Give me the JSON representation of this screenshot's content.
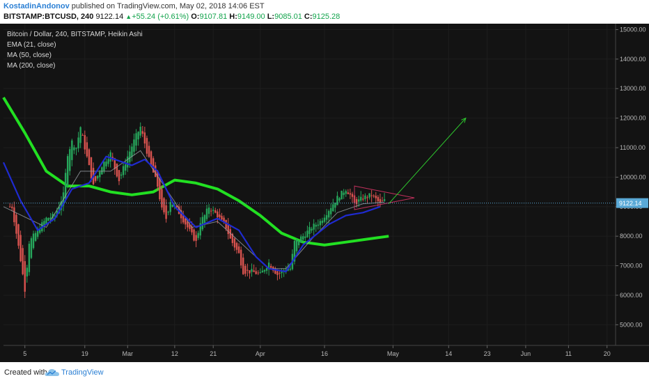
{
  "header": {
    "author": "KostadinAndonov",
    "published_text": "published on TradingView.com, May 02, 2018 14:06 EST",
    "symbol": "BITSTAMP:BTCUSD, 240",
    "last_price": "9122.14",
    "change": "+55.24 (+0.61%)",
    "open_label": "O:",
    "open_value": "9107.81",
    "high_label": "H:",
    "high_value": "9149.00",
    "low_label": "L:",
    "low_value": "9085.01",
    "close_label": "C:",
    "close_value": "9125.28"
  },
  "legend": [
    "Bitcoin / Dollar, 240, BITSTAMP, Heikin Ashi",
    "EMA (21, close)",
    "MA (50, close)",
    "MA (200, close)"
  ],
  "footer": {
    "created_with": "Created with",
    "brand": "TradingView"
  },
  "colors": {
    "background": "#131313",
    "up_candle": "#26a65b",
    "down_candle": "#d9534f",
    "ema21": "#9aa0a6",
    "ma50": "#1f2bd1",
    "ma200": "#22e022",
    "triangle": "#c0305c",
    "arrow": "#2ec82e",
    "last_price_line": "#5aa9d6"
  },
  "chart_data": {
    "type": "line",
    "style": "Heikin Ashi candles with moving averages",
    "y_axis": {
      "ticks": [
        5000,
        6000,
        7000,
        8000,
        9000,
        10000,
        11000,
        12000,
        13000,
        14000,
        15000
      ],
      "tick_labels": [
        "5000.00",
        "6000.00",
        "7000.00",
        "8000.00",
        "9000.00",
        "10000.00",
        "11000.00",
        "12000.00",
        "13000.00",
        "14000.00",
        "15000.00"
      ],
      "ylim": [
        4300,
        15200
      ]
    },
    "x_axis": {
      "tick_labels": [
        "5",
        "19",
        "Mar",
        "12",
        "21",
        "Apr",
        "16",
        "May",
        "14",
        "23",
        "Jun",
        "11",
        "20"
      ],
      "tick_days": [
        5,
        19,
        29,
        40,
        49,
        60,
        75,
        91,
        104,
        113,
        122,
        132,
        141
      ],
      "xlim": [
        0,
        143
      ],
      "day_zero": "Feb 1, 2018"
    },
    "last_price_label": "9122.14",
    "last_price": 9122.14,
    "price_series": [
      [
        2,
        9000
      ],
      [
        4,
        7200
      ],
      [
        5,
        6200
      ],
      [
        6,
        7800
      ],
      [
        8,
        8200
      ],
      [
        10,
        8600
      ],
      [
        12,
        8700
      ],
      [
        14,
        9400
      ],
      [
        15,
        10800
      ],
      [
        16,
        11200
      ],
      [
        17,
        11000
      ],
      [
        18,
        11700
      ],
      [
        19,
        11000
      ],
      [
        21,
        9700
      ],
      [
        23,
        10400
      ],
      [
        25,
        10800
      ],
      [
        26,
        10300
      ],
      [
        27,
        9900
      ],
      [
        29,
        10700
      ],
      [
        31,
        11400
      ],
      [
        32,
        11700
      ],
      [
        34,
        10600
      ],
      [
        36,
        9700
      ],
      [
        37,
        8900
      ],
      [
        38,
        8600
      ],
      [
        39,
        9200
      ],
      [
        41,
        8800
      ],
      [
        43,
        8300
      ],
      [
        45,
        7800
      ],
      [
        46,
        8500
      ],
      [
        47,
        8700
      ],
      [
        48,
        9000
      ],
      [
        50,
        8700
      ],
      [
        52,
        8300
      ],
      [
        53,
        7900
      ],
      [
        55,
        7400
      ],
      [
        56,
        6800
      ],
      [
        58,
        6800
      ],
      [
        60,
        6700
      ],
      [
        62,
        7100
      ],
      [
        64,
        6700
      ],
      [
        66,
        6900
      ],
      [
        67,
        6900
      ],
      [
        68,
        7800
      ],
      [
        70,
        8000
      ],
      [
        72,
        8300
      ],
      [
        74,
        8500
      ],
      [
        76,
        8900
      ],
      [
        78,
        9300
      ],
      [
        80,
        9600
      ],
      [
        81,
        9400
      ],
      [
        82,
        9100
      ],
      [
        84,
        9300
      ],
      [
        86,
        9400
      ],
      [
        88,
        9100
      ],
      [
        89,
        9200
      ]
    ],
    "series": [
      {
        "name": "EMA (21, close)",
        "points": [
          [
            0,
            9000
          ],
          [
            10,
            8300
          ],
          [
            18,
            10200
          ],
          [
            25,
            10200
          ],
          [
            32,
            10900
          ],
          [
            38,
            9600
          ],
          [
            44,
            8300
          ],
          [
            50,
            8500
          ],
          [
            56,
            7700
          ],
          [
            62,
            6900
          ],
          [
            66,
            6900
          ],
          [
            72,
            7900
          ],
          [
            78,
            8800
          ],
          [
            84,
            9100
          ],
          [
            89,
            9150
          ]
        ]
      },
      {
        "name": "MA (50, close)",
        "points": [
          [
            0,
            10500
          ],
          [
            4,
            9200
          ],
          [
            8,
            8200
          ],
          [
            12,
            8600
          ],
          [
            16,
            9600
          ],
          [
            20,
            9800
          ],
          [
            24,
            10700
          ],
          [
            30,
            10400
          ],
          [
            33,
            10600
          ],
          [
            36,
            10200
          ],
          [
            40,
            9000
          ],
          [
            45,
            8300
          ],
          [
            50,
            8600
          ],
          [
            55,
            8200
          ],
          [
            59,
            7300
          ],
          [
            62,
            6900
          ],
          [
            66,
            6800
          ],
          [
            70,
            7700
          ],
          [
            76,
            8400
          ],
          [
            80,
            8700
          ],
          [
            84,
            8800
          ],
          [
            88,
            9000
          ]
        ]
      },
      {
        "name": "MA (200, close)",
        "points": [
          [
            0,
            12700
          ],
          [
            5,
            11500
          ],
          [
            10,
            10200
          ],
          [
            15,
            9700
          ],
          [
            20,
            9700
          ],
          [
            25,
            9500
          ],
          [
            30,
            9400
          ],
          [
            35,
            9500
          ],
          [
            40,
            9900
          ],
          [
            45,
            9800
          ],
          [
            50,
            9600
          ],
          [
            55,
            9200
          ],
          [
            60,
            8700
          ],
          [
            65,
            8100
          ],
          [
            70,
            7800
          ],
          [
            75,
            7700
          ],
          [
            80,
            7800
          ],
          [
            85,
            7900
          ],
          [
            90,
            8000
          ]
        ]
      }
    ],
    "annotations": {
      "triangle": [
        [
          82,
          9700
        ],
        [
          82,
          8900
        ],
        [
          96,
          9300
        ]
      ],
      "arrow": {
        "from": [
          90,
          9100
        ],
        "to": [
          108,
          12000
        ]
      }
    }
  }
}
